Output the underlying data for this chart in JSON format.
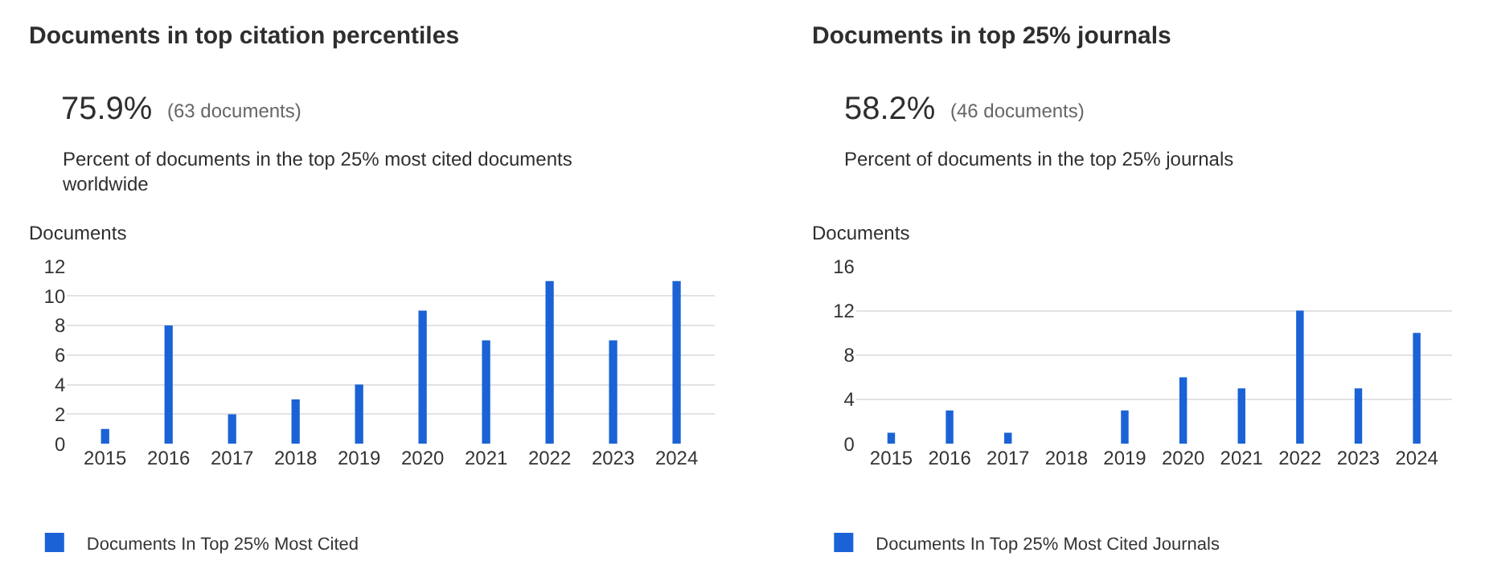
{
  "chart_data": [
    {
      "type": "bar",
      "title": "Documents in top citation percentiles",
      "subtitle": "75.9%",
      "annotations": [
        "(63 documents)",
        "Percent of documents in the top 25% most cited documents worldwide"
      ],
      "ylabel": "Documents",
      "categories": [
        "2015",
        "2016",
        "2017",
        "2018",
        "2019",
        "2020",
        "2021",
        "2022",
        "2023",
        "2024"
      ],
      "series": [
        {
          "name": "Documents In Top 25% Most Cited",
          "color": "#1a62d6",
          "values": [
            1,
            8,
            2,
            3,
            4,
            9,
            7,
            11,
            7,
            11
          ]
        }
      ],
      "ylim": [
        0,
        12
      ],
      "yticks": [
        0,
        2,
        4,
        6,
        8,
        10,
        12
      ],
      "grid": "y",
      "legend": "bottom left"
    },
    {
      "type": "bar",
      "title": "Documents in top 25% journals",
      "subtitle": "58.2%",
      "annotations": [
        "(46 documents)",
        "Percent of documents in the top 25% journals"
      ],
      "ylabel": "Documents",
      "categories": [
        "2015",
        "2016",
        "2017",
        "2018",
        "2019",
        "2020",
        "2021",
        "2022",
        "2023",
        "2024"
      ],
      "series": [
        {
          "name": "Documents In Top 25% Most Cited Journals",
          "color": "#1a62d6",
          "values": [
            1,
            3,
            1,
            0,
            3,
            6,
            5,
            12,
            5,
            10
          ]
        }
      ],
      "ylim": [
        0,
        16
      ],
      "yticks": [
        0,
        4,
        8,
        12,
        16
      ],
      "grid": "y",
      "legend": "bottom left"
    }
  ]
}
